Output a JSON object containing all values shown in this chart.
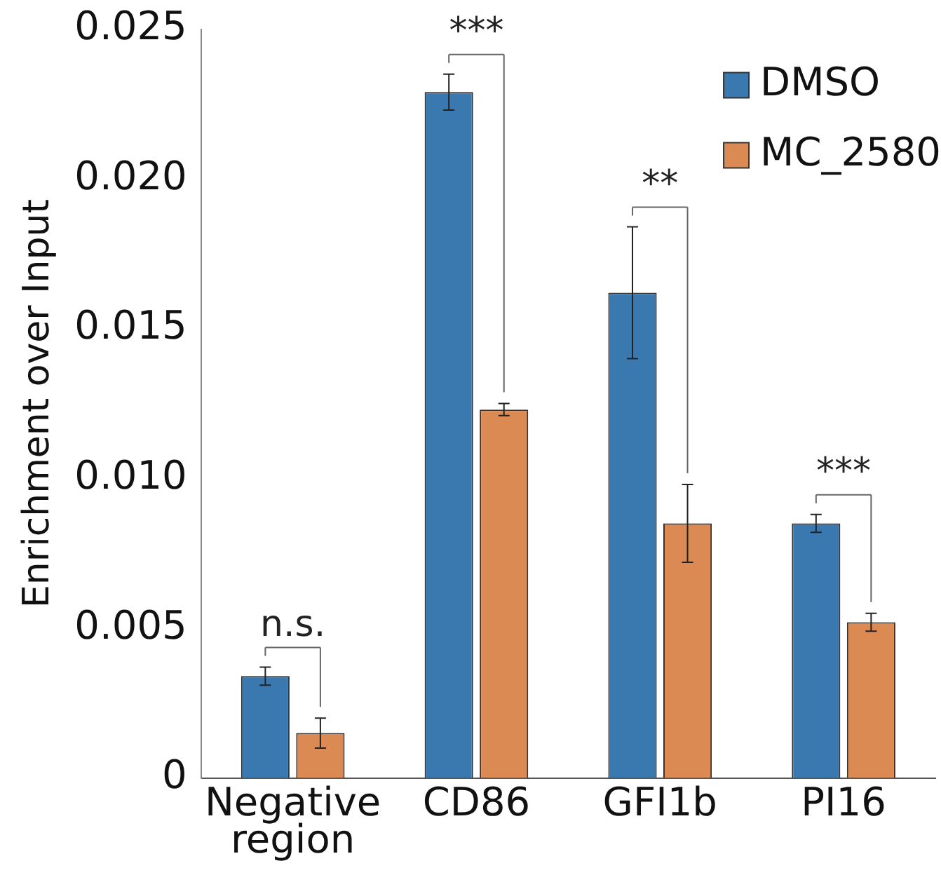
{
  "chart_data": {
    "type": "bar",
    "ylabel": "Enrichment over Input",
    "categories": [
      "Negative region",
      "CD86",
      "GFI1b",
      "PI16"
    ],
    "series": [
      {
        "name": "DMSO",
        "color": "#3a79b0",
        "values": [
          0.0034,
          0.0229,
          0.0162,
          0.0085
        ],
        "errors": [
          0.0003,
          0.0006,
          0.0022,
          0.0003
        ]
      },
      {
        "name": "MC_2580",
        "color": "#db8a53",
        "values": [
          0.0015,
          0.0123,
          0.0085,
          0.0052
        ],
        "errors": [
          0.0005,
          0.0002,
          0.0013,
          0.0003
        ]
      }
    ],
    "ylim": [
      0,
      0.025
    ],
    "yticks": [
      {
        "value": 0,
        "label": "0"
      },
      {
        "value": 0.005,
        "label": "0.005"
      },
      {
        "value": 0.01,
        "label": "0.010"
      },
      {
        "value": 0.015,
        "label": "0.015"
      },
      {
        "value": 0.02,
        "label": "0.020"
      },
      {
        "value": 0.025,
        "label": "0.025"
      }
    ],
    "grid": false,
    "legend": "top right",
    "annotations": [
      "n.s.",
      "***",
      "**",
      "***"
    ]
  }
}
